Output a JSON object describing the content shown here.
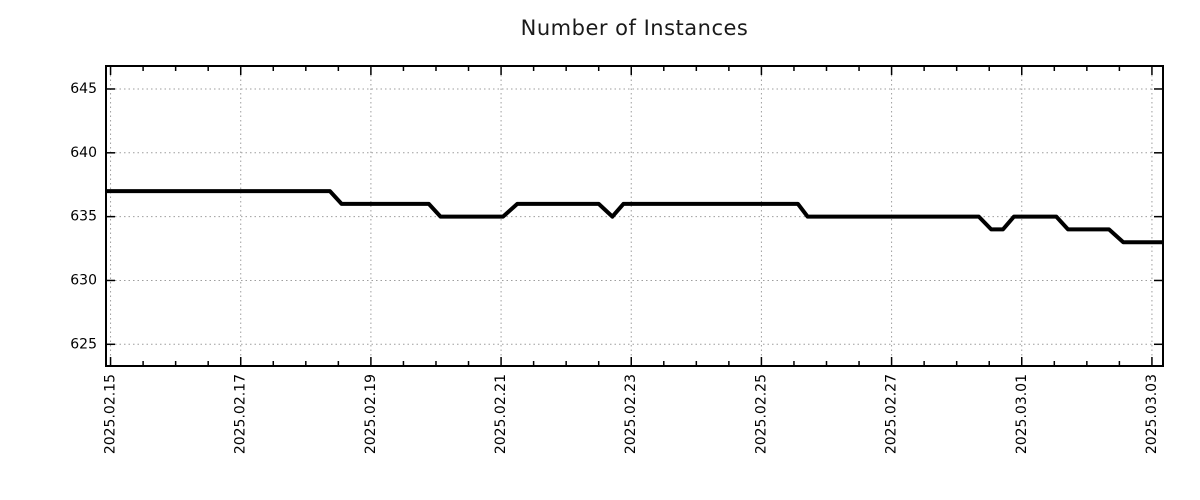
{
  "colors": {
    "background": "#ffffff",
    "line": "#000000",
    "grid": "#9e9e9e",
    "border": "#000000",
    "tick": "#000000",
    "text": "#000000",
    "title_text": "#1a1a1a"
  },
  "chart_data": {
    "type": "line",
    "title": "Number of Instances",
    "xlabel": "",
    "ylabel": "",
    "legend": "none",
    "grid": true,
    "x_unit": "days since 2025.02.15",
    "xlim": [
      -0.07,
      16.17
    ],
    "ylim": [
      623.3,
      646.8
    ],
    "y_ticks": [
      625,
      630,
      635,
      640,
      645
    ],
    "x_major_ticks": [
      {
        "day": 0,
        "label": "2025.02.15"
      },
      {
        "day": 2,
        "label": "2025.02.17"
      },
      {
        "day": 4,
        "label": "2025.02.19"
      },
      {
        "day": 6,
        "label": "2025.02.21"
      },
      {
        "day": 8,
        "label": "2025.02.23"
      },
      {
        "day": 10,
        "label": "2025.02.25"
      },
      {
        "day": 12,
        "label": "2025.02.27"
      },
      {
        "day": 14,
        "label": "2025.03.01"
      },
      {
        "day": 16,
        "label": "2025.03.03"
      }
    ],
    "x_minor_tick_step_days": 0.5,
    "series": [
      {
        "name": "instances",
        "color": "#000000",
        "points": [
          [
            -0.07,
            637
          ],
          [
            3.37,
            637
          ],
          [
            3.55,
            636
          ],
          [
            4.89,
            636
          ],
          [
            5.07,
            635
          ],
          [
            6.03,
            635
          ],
          [
            6.25,
            636
          ],
          [
            7.5,
            636
          ],
          [
            7.71,
            635
          ],
          [
            7.88,
            636
          ],
          [
            10.56,
            636
          ],
          [
            10.71,
            635
          ],
          [
            13.34,
            635
          ],
          [
            13.53,
            634
          ],
          [
            13.71,
            634
          ],
          [
            13.88,
            635
          ],
          [
            14.53,
            635
          ],
          [
            14.71,
            634
          ],
          [
            15.34,
            634
          ],
          [
            15.56,
            633
          ],
          [
            16.17,
            633
          ]
        ]
      }
    ]
  }
}
